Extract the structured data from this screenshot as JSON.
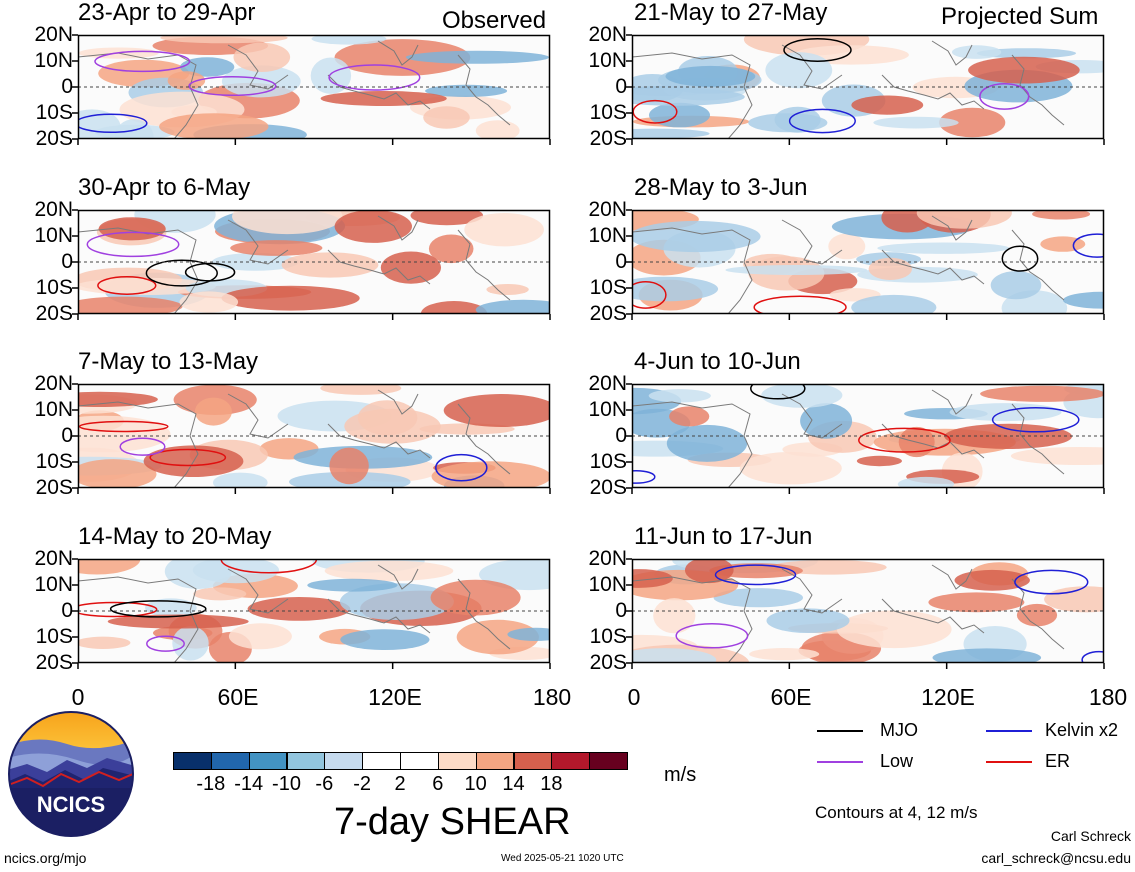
{
  "observed_label": "Observed",
  "projected_label": "Projected Sum",
  "y_ticks": [
    "20N",
    "10N",
    "0",
    "10S",
    "20S"
  ],
  "x_ticks": [
    "0",
    "60E",
    "120E",
    "180"
  ],
  "panels_left": [
    {
      "title": "23-Apr to 29-Apr"
    },
    {
      "title": "30-Apr to 6-May"
    },
    {
      "title": "7-May to 13-May"
    },
    {
      "title": "14-May to 20-May"
    }
  ],
  "panels_right": [
    {
      "title": "21-May to 27-May"
    },
    {
      "title": "28-May to 3-Jun"
    },
    {
      "title": "4-Jun to 10-Jun"
    },
    {
      "title": "11-Jun to 17-Jun"
    }
  ],
  "colorbar": {
    "colors": [
      "#08306b",
      "#2166ac",
      "#4393c3",
      "#92c5de",
      "#c6dbef",
      "#ffffff",
      "#ffffff",
      "#fddbc7",
      "#f4a582",
      "#d6604d",
      "#b2182b",
      "#67001f"
    ],
    "ticks": [
      "-18",
      "-14",
      "-10",
      "-6",
      "-2",
      "2",
      "6",
      "10",
      "14",
      "18"
    ],
    "units": "m/s",
    "title": "7-day SHEAR"
  },
  "legend": [
    {
      "label": "MJO",
      "color": "#000000"
    },
    {
      "label": "Kelvin x2",
      "color": "#1f1fd6"
    },
    {
      "label": "Low",
      "color": "#a040e0"
    },
    {
      "label": "ER",
      "color": "#e01010"
    }
  ],
  "contours_note": "Contours at 4, 12 m/s",
  "author": "Carl Schreck",
  "email": "carl_schreck@ncsu.edu",
  "website": "ncics.org/mjo",
  "timestamp": "Wed 2025-05-21 1020 UTC",
  "logo_text": "NCICS"
}
